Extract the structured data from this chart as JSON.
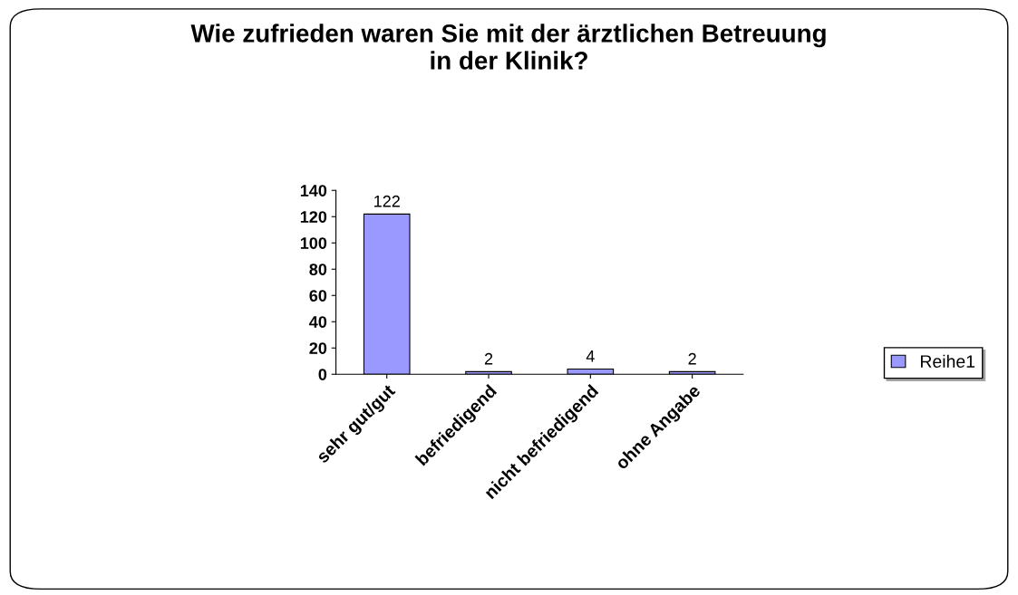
{
  "chart_data": {
    "type": "bar",
    "title": "Wie zufrieden waren Sie mit der ärztlichen Betreuung\nin der Klinik?",
    "categories": [
      "sehr gut/gut",
      "befriedigend",
      "nicht befriedigend",
      "ohne Angabe"
    ],
    "series": [
      {
        "name": "Reihe1",
        "color": "#9999ff",
        "values": [
          122,
          2,
          4,
          2
        ]
      }
    ],
    "ylim": [
      0,
      140
    ],
    "yticks": [
      0,
      20,
      40,
      60,
      80,
      100,
      120,
      140
    ],
    "data_labels": true,
    "grid": false,
    "legend": "right"
  }
}
